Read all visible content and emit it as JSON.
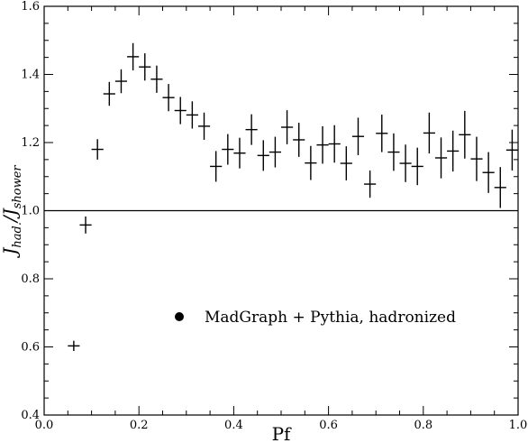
{
  "chart_data": {
    "type": "scatter",
    "xlabel": "Pf",
    "ylabel_parts": {
      "main": "J",
      "sub1": "had.",
      "sep": "/J",
      "sub2": "shower"
    },
    "xlim": [
      0.0,
      1.0
    ],
    "ylim": [
      0.4,
      1.6
    ],
    "x_ticks": [
      "0.0",
      "0.2",
      "0.4",
      "0.6",
      "0.8",
      "1.0"
    ],
    "y_ticks": [
      "0.4",
      "0.6",
      "0.8",
      "1.0",
      "1.2",
      "1.4",
      "1.6"
    ],
    "reference_line_y": 1.0,
    "grid": false,
    "legend": {
      "label": "MadGraph + Pythia, hadronized",
      "placement": "lower-left-center",
      "marker": "filled-circle"
    },
    "series": [
      {
        "name": "MadGraph + Pythia, hadronized",
        "x_err": 0.0125,
        "points": [
          {
            "x": 0.0625,
            "y": 0.603,
            "yerr": 0.015
          },
          {
            "x": 0.0875,
            "y": 0.958,
            "yerr": 0.025
          },
          {
            "x": 0.1125,
            "y": 1.18,
            "yerr": 0.03
          },
          {
            "x": 0.1375,
            "y": 1.343,
            "yerr": 0.035
          },
          {
            "x": 0.1625,
            "y": 1.38,
            "yerr": 0.035
          },
          {
            "x": 0.1875,
            "y": 1.452,
            "yerr": 0.04
          },
          {
            "x": 0.2125,
            "y": 1.422,
            "yerr": 0.04
          },
          {
            "x": 0.2375,
            "y": 1.386,
            "yerr": 0.04
          },
          {
            "x": 0.2625,
            "y": 1.332,
            "yerr": 0.04
          },
          {
            "x": 0.2875,
            "y": 1.294,
            "yerr": 0.04
          },
          {
            "x": 0.3125,
            "y": 1.281,
            "yerr": 0.04
          },
          {
            "x": 0.3375,
            "y": 1.248,
            "yerr": 0.04
          },
          {
            "x": 0.3625,
            "y": 1.13,
            "yerr": 0.045
          },
          {
            "x": 0.3875,
            "y": 1.18,
            "yerr": 0.045
          },
          {
            "x": 0.4125,
            "y": 1.169,
            "yerr": 0.045
          },
          {
            "x": 0.4375,
            "y": 1.238,
            "yerr": 0.045
          },
          {
            "x": 0.4625,
            "y": 1.162,
            "yerr": 0.045
          },
          {
            "x": 0.4875,
            "y": 1.172,
            "yerr": 0.045
          },
          {
            "x": 0.5125,
            "y": 1.245,
            "yerr": 0.05
          },
          {
            "x": 0.5375,
            "y": 1.208,
            "yerr": 0.05
          },
          {
            "x": 0.5625,
            "y": 1.14,
            "yerr": 0.05
          },
          {
            "x": 0.5875,
            "y": 1.193,
            "yerr": 0.055
          },
          {
            "x": 0.6125,
            "y": 1.196,
            "yerr": 0.055
          },
          {
            "x": 0.6375,
            "y": 1.139,
            "yerr": 0.05
          },
          {
            "x": 0.6625,
            "y": 1.218,
            "yerr": 0.055
          },
          {
            "x": 0.6875,
            "y": 1.078,
            "yerr": 0.04
          },
          {
            "x": 0.7125,
            "y": 1.227,
            "yerr": 0.055
          },
          {
            "x": 0.7375,
            "y": 1.172,
            "yerr": 0.055
          },
          {
            "x": 0.7625,
            "y": 1.139,
            "yerr": 0.055
          },
          {
            "x": 0.7875,
            "y": 1.13,
            "yerr": 0.055
          },
          {
            "x": 0.8125,
            "y": 1.228,
            "yerr": 0.06
          },
          {
            "x": 0.8375,
            "y": 1.155,
            "yerr": 0.06
          },
          {
            "x": 0.8625,
            "y": 1.175,
            "yerr": 0.06
          },
          {
            "x": 0.8875,
            "y": 1.223,
            "yerr": 0.07
          },
          {
            "x": 0.9125,
            "y": 1.152,
            "yerr": 0.065
          },
          {
            "x": 0.9375,
            "y": 1.112,
            "yerr": 0.06
          },
          {
            "x": 0.9625,
            "y": 1.068,
            "yerr": 0.06
          },
          {
            "x": 0.9875,
            "y": 1.178,
            "yerr": 0.06
          }
        ]
      }
    ]
  }
}
